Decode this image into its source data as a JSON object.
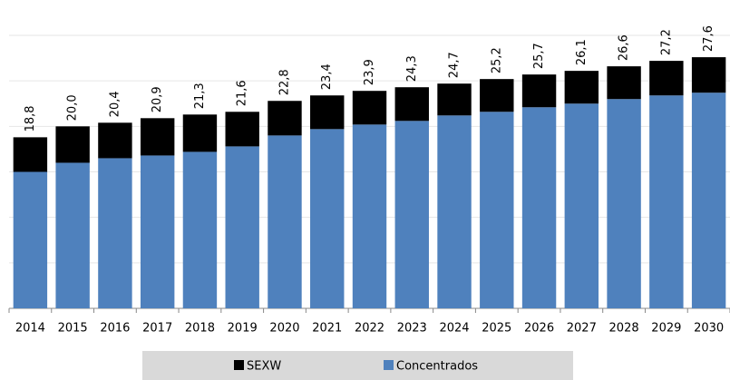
{
  "chart_data": {
    "type": "bar",
    "stacked": true,
    "categories": [
      "2014",
      "2015",
      "2016",
      "2017",
      "2018",
      "2019",
      "2020",
      "2021",
      "2022",
      "2023",
      "2024",
      "2025",
      "2026",
      "2027",
      "2028",
      "2029",
      "2030"
    ],
    "series": [
      {
        "name": "Concentrados",
        "color": "#4f81bd",
        "values": [
          15.0,
          16.0,
          16.5,
          16.8,
          17.2,
          17.8,
          19.0,
          19.7,
          20.2,
          20.6,
          21.2,
          21.6,
          22.1,
          22.5,
          23.0,
          23.4,
          23.7
        ]
      },
      {
        "name": "SEXW",
        "color": "#000000",
        "values": [
          3.8,
          4.0,
          3.9,
          4.1,
          4.1,
          3.8,
          3.8,
          3.7,
          3.7,
          3.7,
          3.5,
          3.6,
          3.6,
          3.6,
          3.6,
          3.8,
          3.9
        ]
      }
    ],
    "totals": [
      18.8,
      20.0,
      20.4,
      20.9,
      21.3,
      21.6,
      22.8,
      23.4,
      23.9,
      24.3,
      24.7,
      25.2,
      25.7,
      26.1,
      26.6,
      27.2,
      27.6
    ],
    "total_labels": [
      "18,8",
      "20,0",
      "20,4",
      "20,9",
      "21,3",
      "21,6",
      "22,8",
      "23,4",
      "23,9",
      "24,3",
      "24,7",
      "25,2",
      "25,7",
      "26,1",
      "26,6",
      "27,2",
      "27,6"
    ],
    "ylim": [
      0,
      30
    ],
    "yticks": [
      0,
      5,
      10,
      15,
      20,
      25,
      30
    ],
    "grid": true
  }
}
